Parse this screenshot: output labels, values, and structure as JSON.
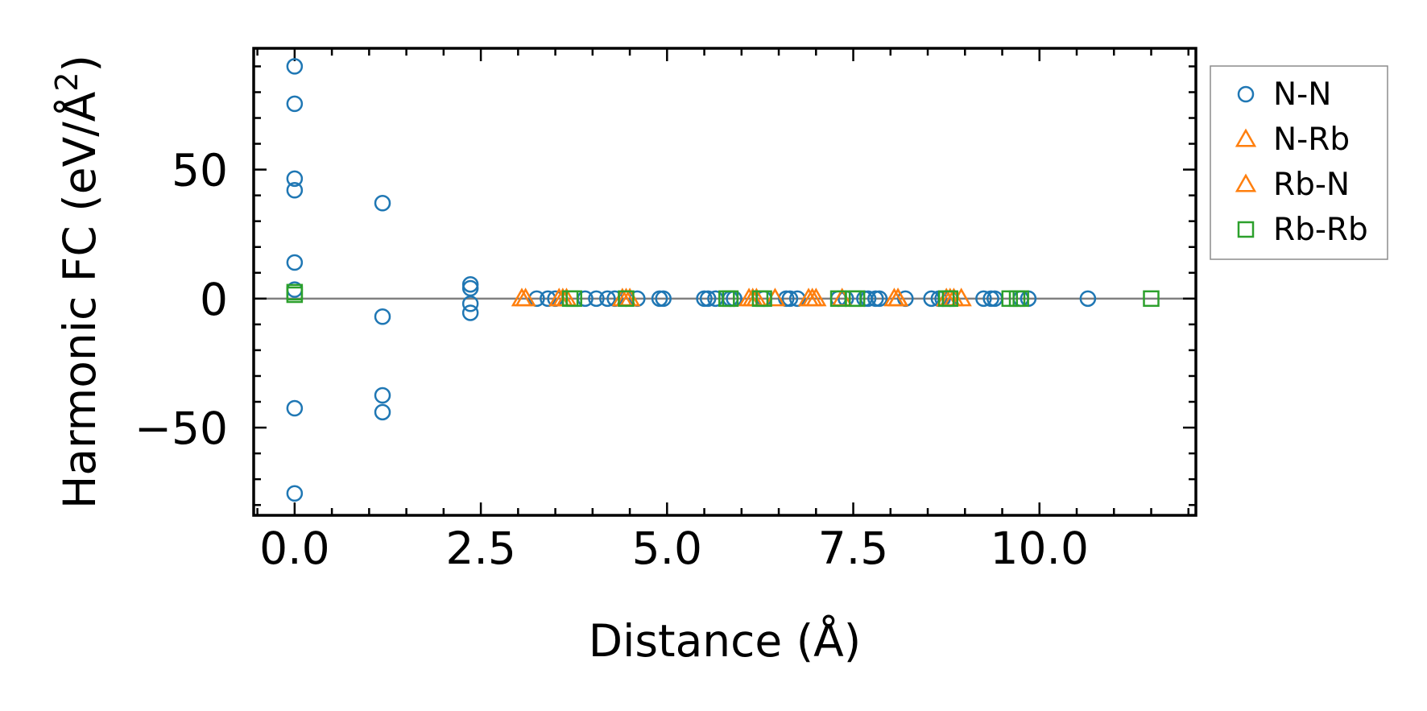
{
  "chart_data": {
    "type": "scatter",
    "xlabel": "Distance (Å)",
    "ylabel": "Harmonic FC (eV/Å",
    "ylabel_superscript": "2",
    "ylabel_tail": ")",
    "xlim": [
      -0.55,
      12.1
    ],
    "ylim": [
      -84,
      97
    ],
    "xticks": [
      0.0,
      2.5,
      5.0,
      7.5,
      10.0
    ],
    "xtick_labels": [
      "0.0",
      "2.5",
      "5.0",
      "7.5",
      "10.0"
    ],
    "x_minor_step": 0.5,
    "yticks": [
      -50,
      0,
      50
    ],
    "ytick_labels": [
      "−50",
      "0",
      "50"
    ],
    "y_minor_step": 10,
    "zero_line": true,
    "grid": false,
    "legend_position": "outside-right-top",
    "series": [
      {
        "name": "N-N",
        "marker": "circle",
        "color": "#1f77b4",
        "points": [
          [
            0.0,
            90
          ],
          [
            0.0,
            75.5
          ],
          [
            0.0,
            46.5
          ],
          [
            0.0,
            42
          ],
          [
            0.0,
            14
          ],
          [
            0.0,
            3.5
          ],
          [
            1.18,
            37
          ],
          [
            1.18,
            -7
          ],
          [
            1.18,
            -37.5
          ],
          [
            1.18,
            -44
          ],
          [
            2.36,
            5.5
          ],
          [
            2.36,
            4
          ],
          [
            2.36,
            -2
          ],
          [
            2.36,
            -5.5
          ],
          [
            3.25,
            0
          ],
          [
            3.4,
            0
          ],
          [
            3.5,
            0
          ],
          [
            3.9,
            0
          ],
          [
            4.05,
            0
          ],
          [
            4.2,
            0
          ],
          [
            4.3,
            0
          ],
          [
            4.45,
            0
          ],
          [
            4.6,
            0
          ],
          [
            4.9,
            0
          ],
          [
            4.95,
            0
          ],
          [
            5.5,
            0
          ],
          [
            5.55,
            0
          ],
          [
            5.65,
            0
          ],
          [
            5.85,
            0
          ],
          [
            5.9,
            0
          ],
          [
            6.3,
            0
          ],
          [
            6.6,
            0
          ],
          [
            6.65,
            0
          ],
          [
            6.75,
            0
          ],
          [
            7.3,
            0
          ],
          [
            7.4,
            0
          ],
          [
            7.65,
            0
          ],
          [
            7.7,
            0
          ],
          [
            7.8,
            0
          ],
          [
            7.85,
            0
          ],
          [
            8.2,
            0
          ],
          [
            8.55,
            0
          ],
          [
            8.65,
            0
          ],
          [
            8.7,
            0
          ],
          [
            8.8,
            0
          ],
          [
            9.25,
            0
          ],
          [
            9.35,
            0
          ],
          [
            9.4,
            0
          ],
          [
            9.75,
            0
          ],
          [
            9.85,
            0
          ],
          [
            10.65,
            0
          ],
          [
            0.0,
            -42.5
          ],
          [
            0.0,
            -75.5
          ]
        ]
      },
      {
        "name": "N-Rb",
        "marker": "triangle",
        "color": "#ff7f0e",
        "points": [
          [
            3.05,
            0
          ],
          [
            3.55,
            0
          ],
          [
            3.65,
            0
          ],
          [
            4.45,
            0
          ],
          [
            4.5,
            0
          ],
          [
            6.1,
            0
          ],
          [
            6.2,
            0
          ],
          [
            6.45,
            0
          ],
          [
            6.9,
            0
          ],
          [
            7.0,
            0
          ],
          [
            7.35,
            0
          ],
          [
            8.05,
            0
          ],
          [
            8.1,
            0
          ],
          [
            8.75,
            0
          ],
          [
            8.85,
            0
          ],
          [
            8.95,
            0
          ]
        ]
      },
      {
        "name": "Rb-N",
        "marker": "triangle",
        "color": "#ff7f0e",
        "points": [
          [
            3.1,
            0
          ],
          [
            3.6,
            0
          ],
          [
            4.4,
            0
          ],
          [
            6.15,
            0
          ],
          [
            6.95,
            0
          ],
          [
            8.1,
            0
          ],
          [
            8.8,
            0
          ]
        ]
      },
      {
        "name": "Rb-Rb",
        "marker": "square",
        "color": "#2ca02c",
        "points": [
          [
            0.0,
            2.5
          ],
          [
            0.0,
            1.5
          ],
          [
            3.7,
            0
          ],
          [
            3.75,
            0
          ],
          [
            4.45,
            0
          ],
          [
            5.8,
            0
          ],
          [
            5.85,
            0
          ],
          [
            6.25,
            0
          ],
          [
            6.3,
            0
          ],
          [
            7.3,
            0
          ],
          [
            7.5,
            0
          ],
          [
            7.55,
            0
          ],
          [
            8.75,
            0
          ],
          [
            8.8,
            0
          ],
          [
            9.6,
            0
          ],
          [
            9.7,
            0
          ],
          [
            9.75,
            0
          ],
          [
            11.5,
            0
          ]
        ]
      }
    ]
  }
}
